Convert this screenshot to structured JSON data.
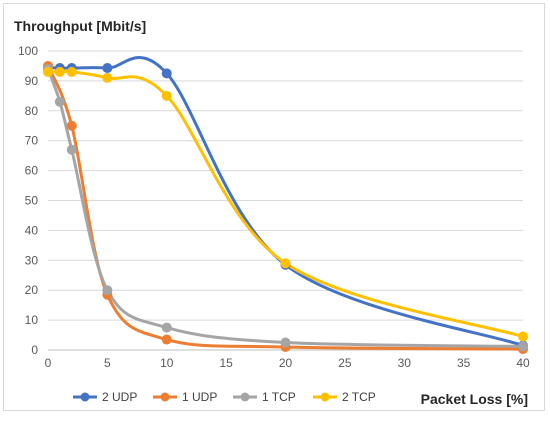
{
  "chart_data": {
    "type": "line",
    "title": "",
    "ylabel": "Throughput [Mbit/s]",
    "xlabel": "Packet Loss [%]",
    "xlim": [
      0,
      40
    ],
    "ylim": [
      0,
      100
    ],
    "x_ticks": [
      0,
      5,
      10,
      15,
      20,
      25,
      30,
      35,
      40
    ],
    "y_ticks": [
      0,
      10,
      20,
      30,
      40,
      50,
      60,
      70,
      80,
      90,
      100
    ],
    "grid": "horizontal",
    "legend_position": "bottom",
    "smoothed": true,
    "marker": "circle",
    "series": [
      {
        "name": "2 UDP",
        "color": "#4472C4",
        "points": [
          [
            0,
            94.5
          ],
          [
            1,
            94.3
          ],
          [
            2,
            94.3
          ],
          [
            5,
            94.3
          ],
          [
            10,
            92.5
          ],
          [
            20,
            28.5
          ],
          [
            40,
            1.5
          ]
        ]
      },
      {
        "name": "1 UDP",
        "color": "#ED7D31",
        "points": [
          [
            0,
            95
          ],
          [
            2,
            75
          ],
          [
            5,
            18.5
          ],
          [
            10,
            3.5
          ],
          [
            20,
            1
          ],
          [
            40,
            0.3
          ]
        ]
      },
      {
        "name": "1 TCP",
        "color": "#A5A5A5",
        "points": [
          [
            0,
            94
          ],
          [
            1,
            83
          ],
          [
            2,
            67
          ],
          [
            5,
            20
          ],
          [
            10,
            7.5
          ],
          [
            20,
            2.5
          ],
          [
            40,
            1.2
          ]
        ]
      },
      {
        "name": "2 TCP",
        "color": "#FFC000",
        "points": [
          [
            0,
            93
          ],
          [
            1,
            93
          ],
          [
            2,
            93
          ],
          [
            5,
            91
          ],
          [
            10,
            85
          ],
          [
            20,
            29
          ],
          [
            40,
            4.5
          ]
        ]
      }
    ]
  }
}
